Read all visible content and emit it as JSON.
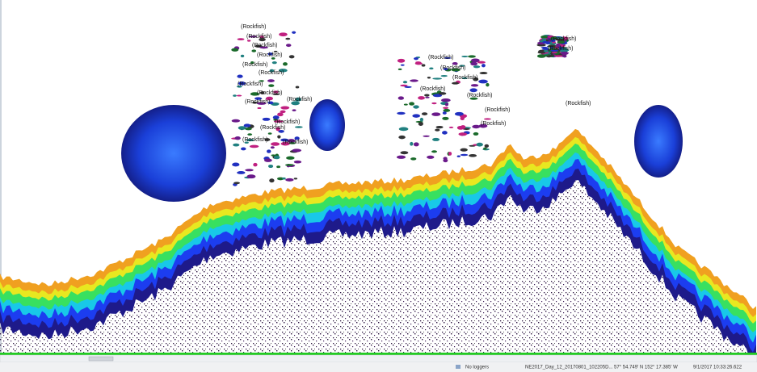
{
  "echogram": {
    "labels": [
      "(Rockfish)",
      "(Rockfish)",
      "(Rockfish)",
      "(Rockfish)",
      "(Rockfish)",
      "(Rockfish)",
      "(Rockfish)",
      "(Rockfish)",
      "(Rockfish)",
      "(Rockfish)",
      "(Rockfish)",
      "(Rockfish)",
      "(Rockfish)",
      "(Rockfish)",
      "(Rockfish)",
      "(Rockfish)",
      "(Rockfish)",
      "(Rockfish)",
      "(Rockfish)",
      "(Rockfish)",
      "(Rockfish)",
      "(Rockfish)",
      "(Rockfish)",
      "(Rockfish)"
    ]
  },
  "status_bar": {
    "logger_status": "No loggers",
    "file": "NE2017_Day_12_20170801_102205D...",
    "position": "57° 54.749' N 152° 17.385' W",
    "timestamp": "9/1/2017 10:33:26.622"
  }
}
